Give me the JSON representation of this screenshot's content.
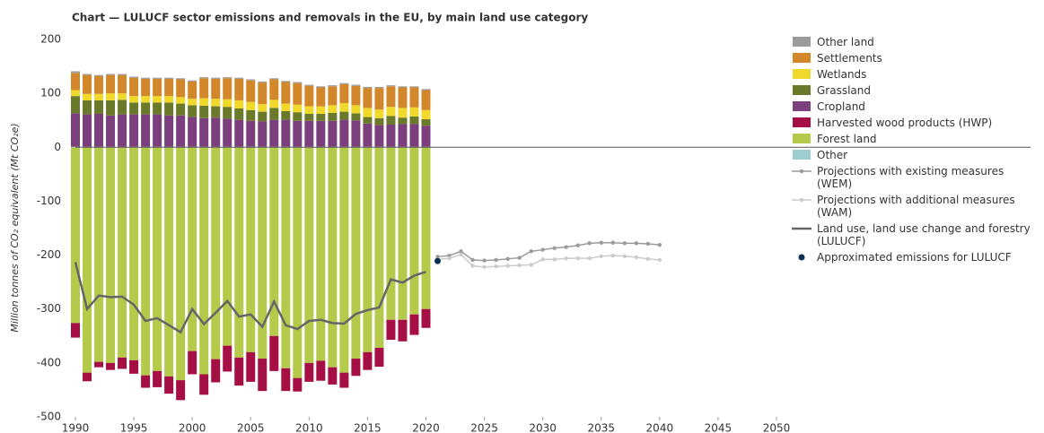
{
  "chart_data": {
    "type": "bar",
    "title": "Chart — LULUCF sector emissions and removals in the EU, by main land use category",
    "y_label": "Million tonnes of CO₂ equivalent (Mt CO₂e)",
    "xlim": [
      1990,
      2050
    ],
    "xticks": [
      1990,
      1995,
      2000,
      2005,
      2010,
      2015,
      2020,
      2025,
      2030,
      2035,
      2040,
      2045,
      2050
    ],
    "ylim": [
      -500,
      200
    ],
    "yticks": [
      -500,
      -400,
      -300,
      -200,
      -100,
      0,
      100,
      200
    ],
    "grid": false,
    "legend": "right",
    "x": [
      1990,
      1991,
      1992,
      1993,
      1994,
      1995,
      1996,
      1997,
      1998,
      1999,
      2000,
      2001,
      2002,
      2003,
      2004,
      2005,
      2006,
      2007,
      2008,
      2009,
      2010,
      2011,
      2012,
      2013,
      2014,
      2015,
      2016,
      2017,
      2018,
      2019,
      2020
    ],
    "series": [
      {
        "name": "Other land",
        "color": "#9b9b9b",
        "kind": "bar",
        "values": [
          3,
          2,
          2,
          2,
          2,
          2,
          2,
          2,
          2,
          2,
          2,
          2,
          2,
          2,
          2,
          2,
          2,
          2,
          2,
          2,
          2,
          2,
          2,
          2,
          2,
          2,
          2,
          2,
          2,
          2,
          2
        ]
      },
      {
        "name": "Settlements",
        "color": "#d3872b",
        "kind": "bar",
        "values": [
          32,
          35,
          33,
          34,
          34,
          34,
          32,
          32,
          32,
          33,
          32,
          37,
          37,
          39,
          40,
          40,
          40,
          38,
          40,
          40,
          38,
          35,
          35,
          35,
          36,
          37,
          40,
          38,
          38,
          37,
          37
        ]
      },
      {
        "name": "Wetlands",
        "color": "#f0d92a",
        "kind": "bar",
        "values": [
          11,
          12,
          12,
          13,
          12,
          12,
          12,
          12,
          12,
          12,
          12,
          14,
          14,
          14,
          15,
          15,
          14,
          15,
          14,
          14,
          14,
          14,
          14,
          16,
          15,
          17,
          16,
          17,
          18,
          17,
          17
        ]
      },
      {
        "name": "Grassland",
        "color": "#6b7a2a",
        "kind": "bar",
        "values": [
          32,
          26,
          25,
          28,
          27,
          22,
          22,
          22,
          24,
          22,
          22,
          23,
          21,
          22,
          21,
          20,
          18,
          22,
          16,
          16,
          13,
          13,
          15,
          15,
          13,
          12,
          13,
          16,
          12,
          14,
          12
        ]
      },
      {
        "name": "Cropland",
        "color": "#7b3f7e",
        "kind": "bar",
        "values": [
          62,
          60,
          61,
          58,
          60,
          60,
          60,
          60,
          58,
          58,
          55,
          53,
          54,
          52,
          50,
          48,
          47,
          50,
          50,
          48,
          48,
          48,
          48,
          50,
          49,
          43,
          40,
          41,
          42,
          42,
          39
        ]
      },
      {
        "name": "Harvested wood products (HWP)",
        "color": "#a50f43",
        "kind": "bar",
        "values": [
          -27,
          -16,
          -10,
          -13,
          -21,
          -25,
          -23,
          -30,
          -32,
          -37,
          -43,
          -38,
          -43,
          -48,
          -52,
          -55,
          -60,
          -65,
          -42,
          -25,
          -35,
          -37,
          -32,
          -28,
          -32,
          -33,
          -35,
          -37,
          -40,
          -38,
          -35
        ]
      },
      {
        "name": "Forest land",
        "color": "#b5c94a",
        "kind": "bar",
        "values": [
          -326,
          -418,
          -398,
          -400,
          -390,
          -395,
          -423,
          -415,
          -425,
          -432,
          -378,
          -421,
          -393,
          -368,
          -390,
          -380,
          -392,
          -350,
          -410,
          -428,
          -400,
          -396,
          -408,
          -418,
          -392,
          -380,
          -372,
          -320,
          -320,
          -310,
          -300
        ]
      },
      {
        "name": "Other",
        "color": "#9ecdd0",
        "kind": "bar",
        "values": [
          1,
          1,
          1,
          1,
          1,
          1,
          1,
          1,
          1,
          1,
          1,
          1,
          1,
          1,
          1,
          1,
          1,
          1,
          1,
          1,
          1,
          1,
          1,
          1,
          1,
          1,
          1,
          1,
          1,
          1,
          1
        ]
      },
      {
        "name": "Projections with existing measures (WEM)",
        "color": "#9b9b9b",
        "kind": "line",
        "markers": true,
        "x": [
          2021,
          2022,
          2023,
          2024,
          2025,
          2026,
          2027,
          2028,
          2029,
          2030,
          2031,
          2032,
          2033,
          2034,
          2035,
          2036,
          2037,
          2038,
          2039,
          2040
        ],
        "values": [
          -203,
          -201,
          -193,
          -209,
          -210,
          -209,
          -207,
          -205,
          -193,
          -190,
          -187,
          -185,
          -182,
          -178,
          -177,
          -177,
          -178,
          -178,
          -179,
          -181
        ]
      },
      {
        "name": "Projections with additional measures (WAM)",
        "color": "#cccccc",
        "kind": "line",
        "markers": true,
        "x": [
          2021,
          2022,
          2023,
          2024,
          2025,
          2026,
          2027,
          2028,
          2029,
          2030,
          2031,
          2032,
          2033,
          2034,
          2035,
          2036,
          2037,
          2038,
          2039,
          2040
        ],
        "values": [
          -208,
          -206,
          -199,
          -220,
          -222,
          -221,
          -220,
          -219,
          -218,
          -208,
          -208,
          -206,
          -206,
          -206,
          -202,
          -201,
          -202,
          -204,
          -207,
          -209
        ]
      },
      {
        "name": "Land use, land use change and forestry (LULUCF)",
        "color": "#666666",
        "kind": "line",
        "markers": false,
        "values": [
          -213,
          -300,
          -275,
          -278,
          -277,
          -292,
          -322,
          -317,
          -330,
          -343,
          -300,
          -328,
          -307,
          -285,
          -314,
          -310,
          -333,
          -286,
          -330,
          -337,
          -322,
          -320,
          -326,
          -327,
          -309,
          -302,
          -297,
          -245,
          -251,
          -238,
          -231
        ]
      },
      {
        "name": "Approximated emissions for LULUCF",
        "color": "#0b2f52",
        "kind": "point",
        "x": [
          2021
        ],
        "values": [
          -211
        ]
      }
    ]
  }
}
